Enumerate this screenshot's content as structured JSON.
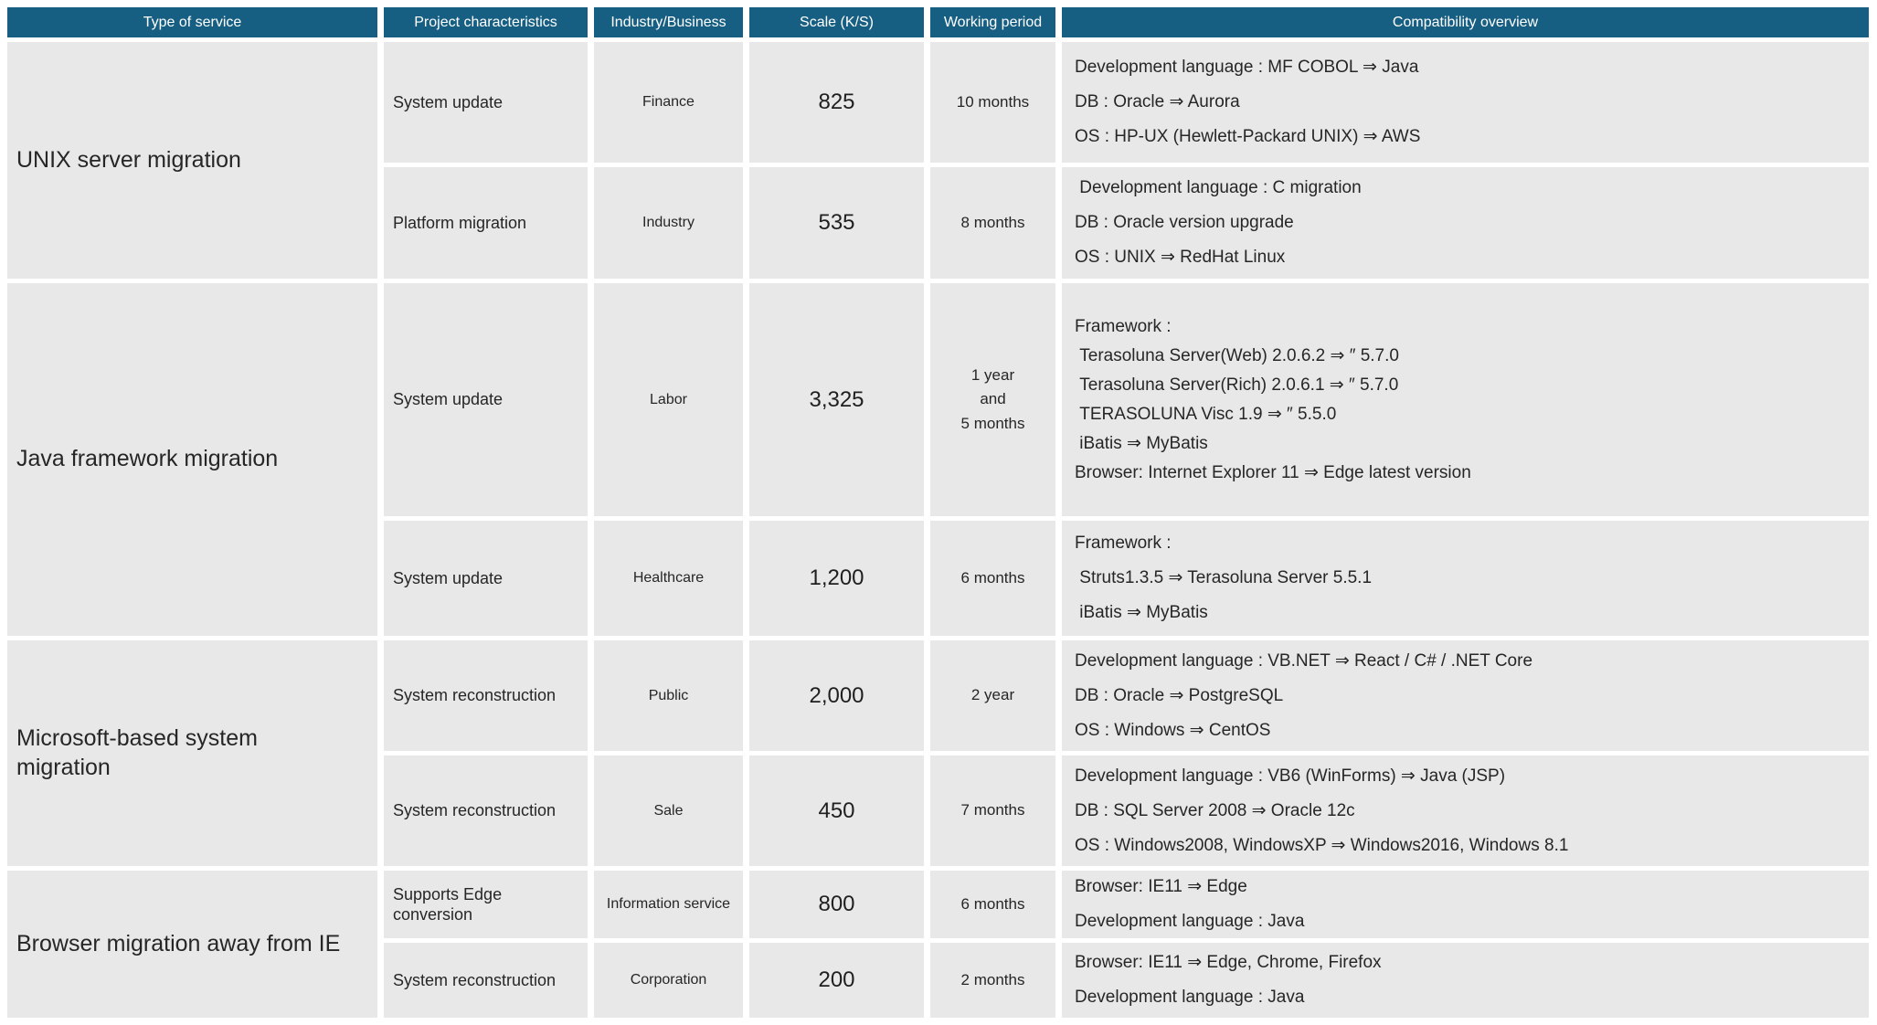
{
  "table": {
    "colors": {
      "header_bg": "#175f82",
      "cell_bg": "#e8e8e8",
      "header_text": "#ffffff",
      "body_text": "#262626"
    },
    "headers": [
      "Type of service",
      "Project characteristics",
      "Industry/Business",
      "Scale (K/S)",
      "Working period",
      "Compatibility overview"
    ],
    "sections": [
      {
        "service": "UNIX server migration",
        "rows": [
          {
            "characteristics": "System update",
            "industry": "Finance",
            "scale": "825",
            "period": "10 months",
            "compat": [
              "Development language : MF COBOL ⇒ Java",
              "DB : Oracle ⇒ Aurora",
              "OS : HP-UX (Hewlett-Packard UNIX) ⇒ AWS"
            ]
          },
          {
            "characteristics": "Platform migration",
            "industry": "Industry",
            "scale": "535",
            "period": "8 months",
            "compat": [
              " Development language : C migration",
              "DB : Oracle version upgrade",
              "OS : UNIX ⇒ RedHat Linux"
            ]
          }
        ]
      },
      {
        "service": "Java framework migration",
        "rows": [
          {
            "characteristics": "System update",
            "industry": "Labor",
            "scale": "3,325",
            "period": "1 year\nand\n5 months",
            "compat": [
              "Framework :",
              " Terasoluna Server(Web) 2.0.6.2 ⇒ ″ 5.7.0",
              " Terasoluna Server(Rich) 2.0.6.1 ⇒ ″ 5.7.0",
              " TERASOLUNA Visc 1.9 ⇒ ″ 5.5.0",
              " iBatis ⇒ MyBatis",
              "Browser: Internet Explorer 11 ⇒ Edge latest version"
            ]
          },
          {
            "characteristics": "System update",
            "industry": "Healthcare",
            "scale": "1,200",
            "period": "6 months",
            "compat": [
              "Framework :",
              " Struts1.3.5 ⇒ Terasoluna Server 5.5.1",
              " iBatis ⇒ MyBatis"
            ]
          }
        ]
      },
      {
        "service": "Microsoft-based system\nmigration",
        "rows": [
          {
            "characteristics": "System reconstruction",
            "industry": "Public",
            "scale": "2,000",
            "period": "2 year",
            "compat": [
              "Development language : VB.NET ⇒ React / C# / .NET Core",
              "DB : Oracle ⇒ PostgreSQL",
              "OS : Windows ⇒ CentOS"
            ]
          },
          {
            "characteristics": "System reconstruction",
            "industry": "Sale",
            "scale": "450",
            "period": "7 months",
            "compat": [
              "Development language : VB6 (WinForms) ⇒ Java (JSP)",
              "DB : SQL Server 2008 ⇒ Oracle 12c",
              "OS : Windows2008, WindowsXP ⇒ Windows2016, Windows 8.1"
            ]
          }
        ]
      },
      {
        "service": "Browser migration away from IE",
        "rows": [
          {
            "characteristics": "Supports Edge conversion",
            "industry": "Information service",
            "scale": "800",
            "period": "6 months",
            "compat": [
              "Browser: IE11 ⇒ Edge",
              "Development language : Java"
            ]
          },
          {
            "characteristics": "System reconstruction",
            "industry": "Corporation",
            "scale": "200",
            "period": "2 months",
            "compat": [
              "Browser: IE11 ⇒ Edge, Chrome, Firefox",
              "Development language : Java"
            ]
          }
        ]
      }
    ]
  }
}
